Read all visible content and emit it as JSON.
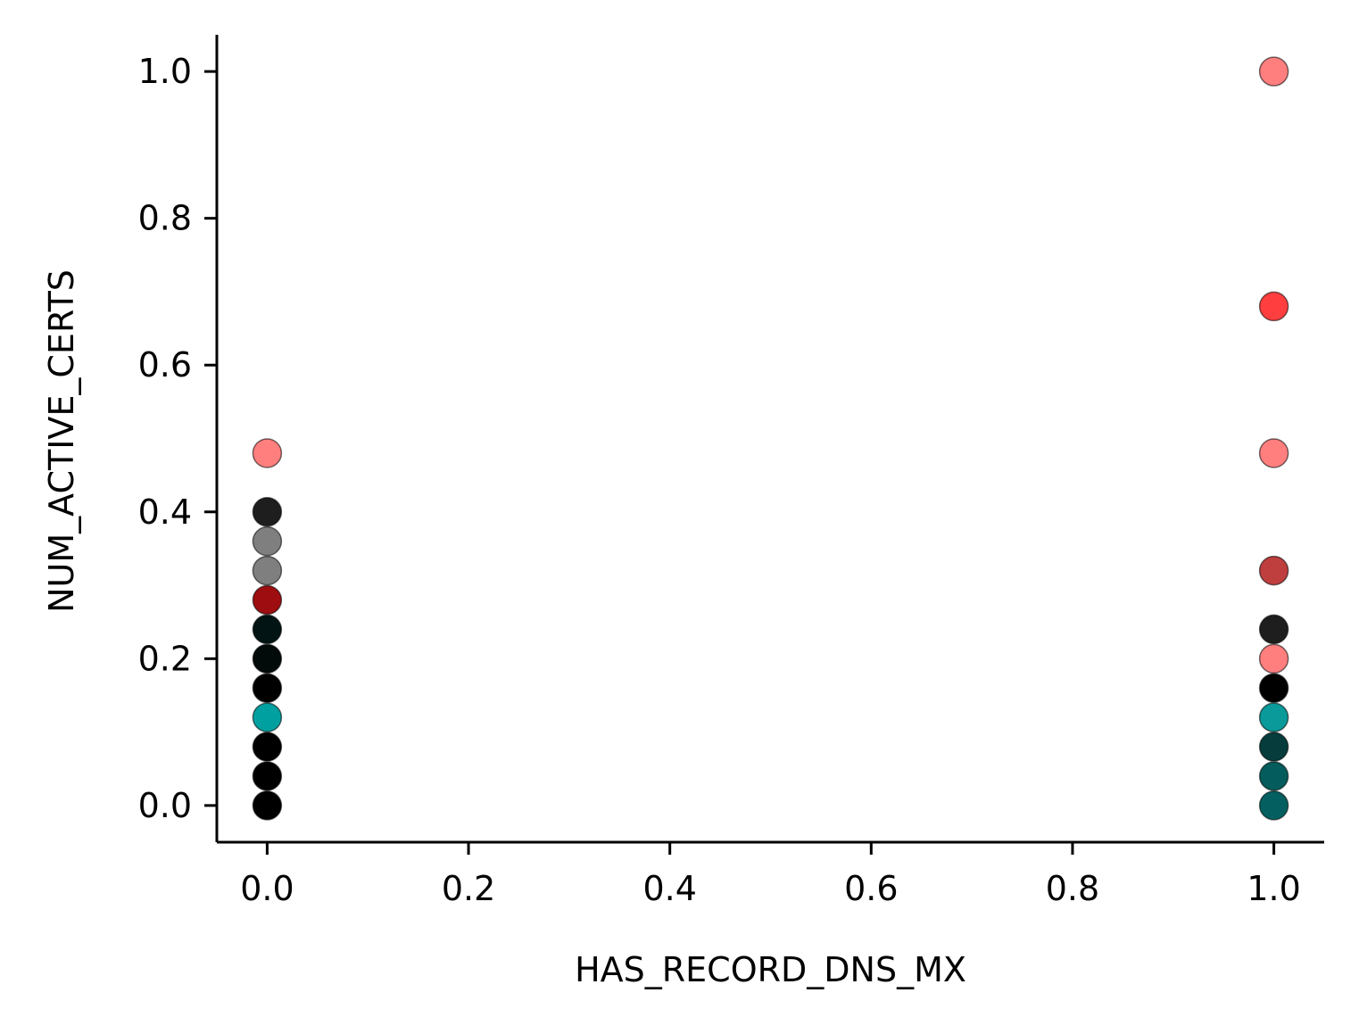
{
  "chart_data": {
    "type": "scatter",
    "title": "",
    "xlabel": "HAS_RECORD_DNS_MX",
    "ylabel": "NUM_ACTIVE_CERTS",
    "xlim": [
      -0.05,
      1.05
    ],
    "ylim": [
      -0.05,
      1.05
    ],
    "xticks": [
      0.0,
      0.2,
      0.4,
      0.6,
      0.8,
      1.0
    ],
    "xtick_labels": [
      "0.0",
      "0.2",
      "0.4",
      "0.6",
      "0.8",
      "1.0"
    ],
    "yticks": [
      0.0,
      0.2,
      0.4,
      0.6,
      0.8,
      1.0
    ],
    "ytick_labels": [
      "0.0",
      "0.2",
      "0.4",
      "0.6",
      "0.8",
      "1.0"
    ],
    "grid": false,
    "spines": "left-bottom",
    "points": [
      {
        "x": 0.0,
        "y": 0.48,
        "color": "#ff7f7f"
      },
      {
        "x": 0.0,
        "y": 0.4,
        "color": "#1e1e1e"
      },
      {
        "x": 0.0,
        "y": 0.36,
        "color": "#7f7f7f"
      },
      {
        "x": 0.0,
        "y": 0.32,
        "color": "#7f7f7f"
      },
      {
        "x": 0.0,
        "y": 0.28,
        "color": "#9e0e10"
      },
      {
        "x": 0.0,
        "y": 0.24,
        "color": "#021414"
      },
      {
        "x": 0.0,
        "y": 0.2,
        "color": "#020a0a"
      },
      {
        "x": 0.0,
        "y": 0.16,
        "color": "#000000"
      },
      {
        "x": 0.0,
        "y": 0.12,
        "color": "#00a0a0"
      },
      {
        "x": 0.0,
        "y": 0.08,
        "color": "#000000"
      },
      {
        "x": 0.0,
        "y": 0.04,
        "color": "#000000"
      },
      {
        "x": 0.0,
        "y": 0.0,
        "color": "#000000"
      },
      {
        "x": 1.0,
        "y": 1.0,
        "color": "#ff7f7f"
      },
      {
        "x": 1.0,
        "y": 0.68,
        "color": "#ff3f3f"
      },
      {
        "x": 1.0,
        "y": 0.48,
        "color": "#ff7f7f"
      },
      {
        "x": 1.0,
        "y": 0.32,
        "color": "#bf3f3f"
      },
      {
        "x": 1.0,
        "y": 0.24,
        "color": "#1e1e1e"
      },
      {
        "x": 1.0,
        "y": 0.2,
        "color": "#ff7f7f"
      },
      {
        "x": 1.0,
        "y": 0.16,
        "color": "#000000"
      },
      {
        "x": 1.0,
        "y": 0.12,
        "color": "#0a9a9a"
      },
      {
        "x": 1.0,
        "y": 0.08,
        "color": "#063c3c"
      },
      {
        "x": 1.0,
        "y": 0.04,
        "color": "#045c5c"
      },
      {
        "x": 1.0,
        "y": 0.0,
        "color": "#046060"
      }
    ]
  }
}
